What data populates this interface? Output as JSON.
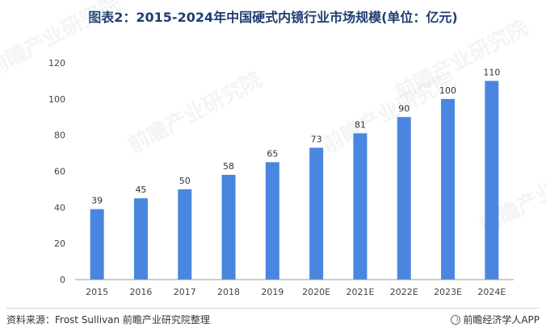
{
  "title": "图表2：2015-2024年中国硬式内镜行业市场规模(单位：亿元)",
  "footer": {
    "source": "资料来源：Frost Sullivan 前瞻产业研究院整理",
    "brand": "前瞻经济学人APP",
    "brand_icon": "qianzhan-logo-icon"
  },
  "watermark": "前瞻产业研究院",
  "colors": {
    "bar": "#4a86e0",
    "axis": "#999999",
    "title": "#1f3e72"
  },
  "chart_data": {
    "type": "bar",
    "title": "图表2：2015-2024年中国硬式内镜行业市场规模(单位：亿元)",
    "categories": [
      "2015",
      "2016",
      "2017",
      "2018",
      "2019",
      "2020E",
      "2021E",
      "2022E",
      "2023E",
      "2024E"
    ],
    "values": [
      39,
      45,
      50,
      58,
      65,
      73,
      81,
      90,
      100,
      110
    ],
    "ylim": [
      0,
      120
    ],
    "yticks": [
      0,
      20,
      40,
      60,
      80,
      100,
      120
    ],
    "grid": false,
    "legend": "none",
    "data_labels": true
  }
}
